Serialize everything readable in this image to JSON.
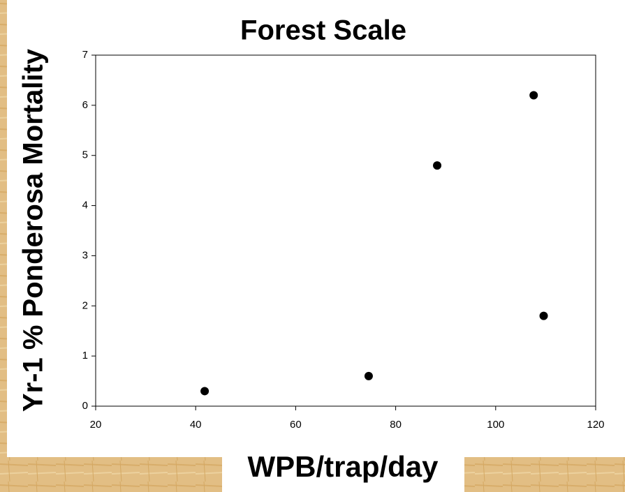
{
  "chart_data": {
    "type": "scatter",
    "title": "Forest Scale",
    "x_label": "WPB/trap/day",
    "y_label": "Yr-1 % Ponderosa Mortality",
    "x": [
      41.8,
      74.6,
      88.3,
      107.6,
      109.6
    ],
    "values": [
      0.3,
      0.6,
      4.8,
      6.2,
      1.8
    ],
    "color": "#000000",
    "xlim": [
      20,
      120
    ],
    "xticks": [
      20,
      40,
      60,
      80,
      100,
      120
    ],
    "ylim": [
      0,
      7
    ],
    "yticks": [
      0,
      1,
      2,
      3,
      4,
      5,
      6,
      7
    ],
    "grid": false
  }
}
